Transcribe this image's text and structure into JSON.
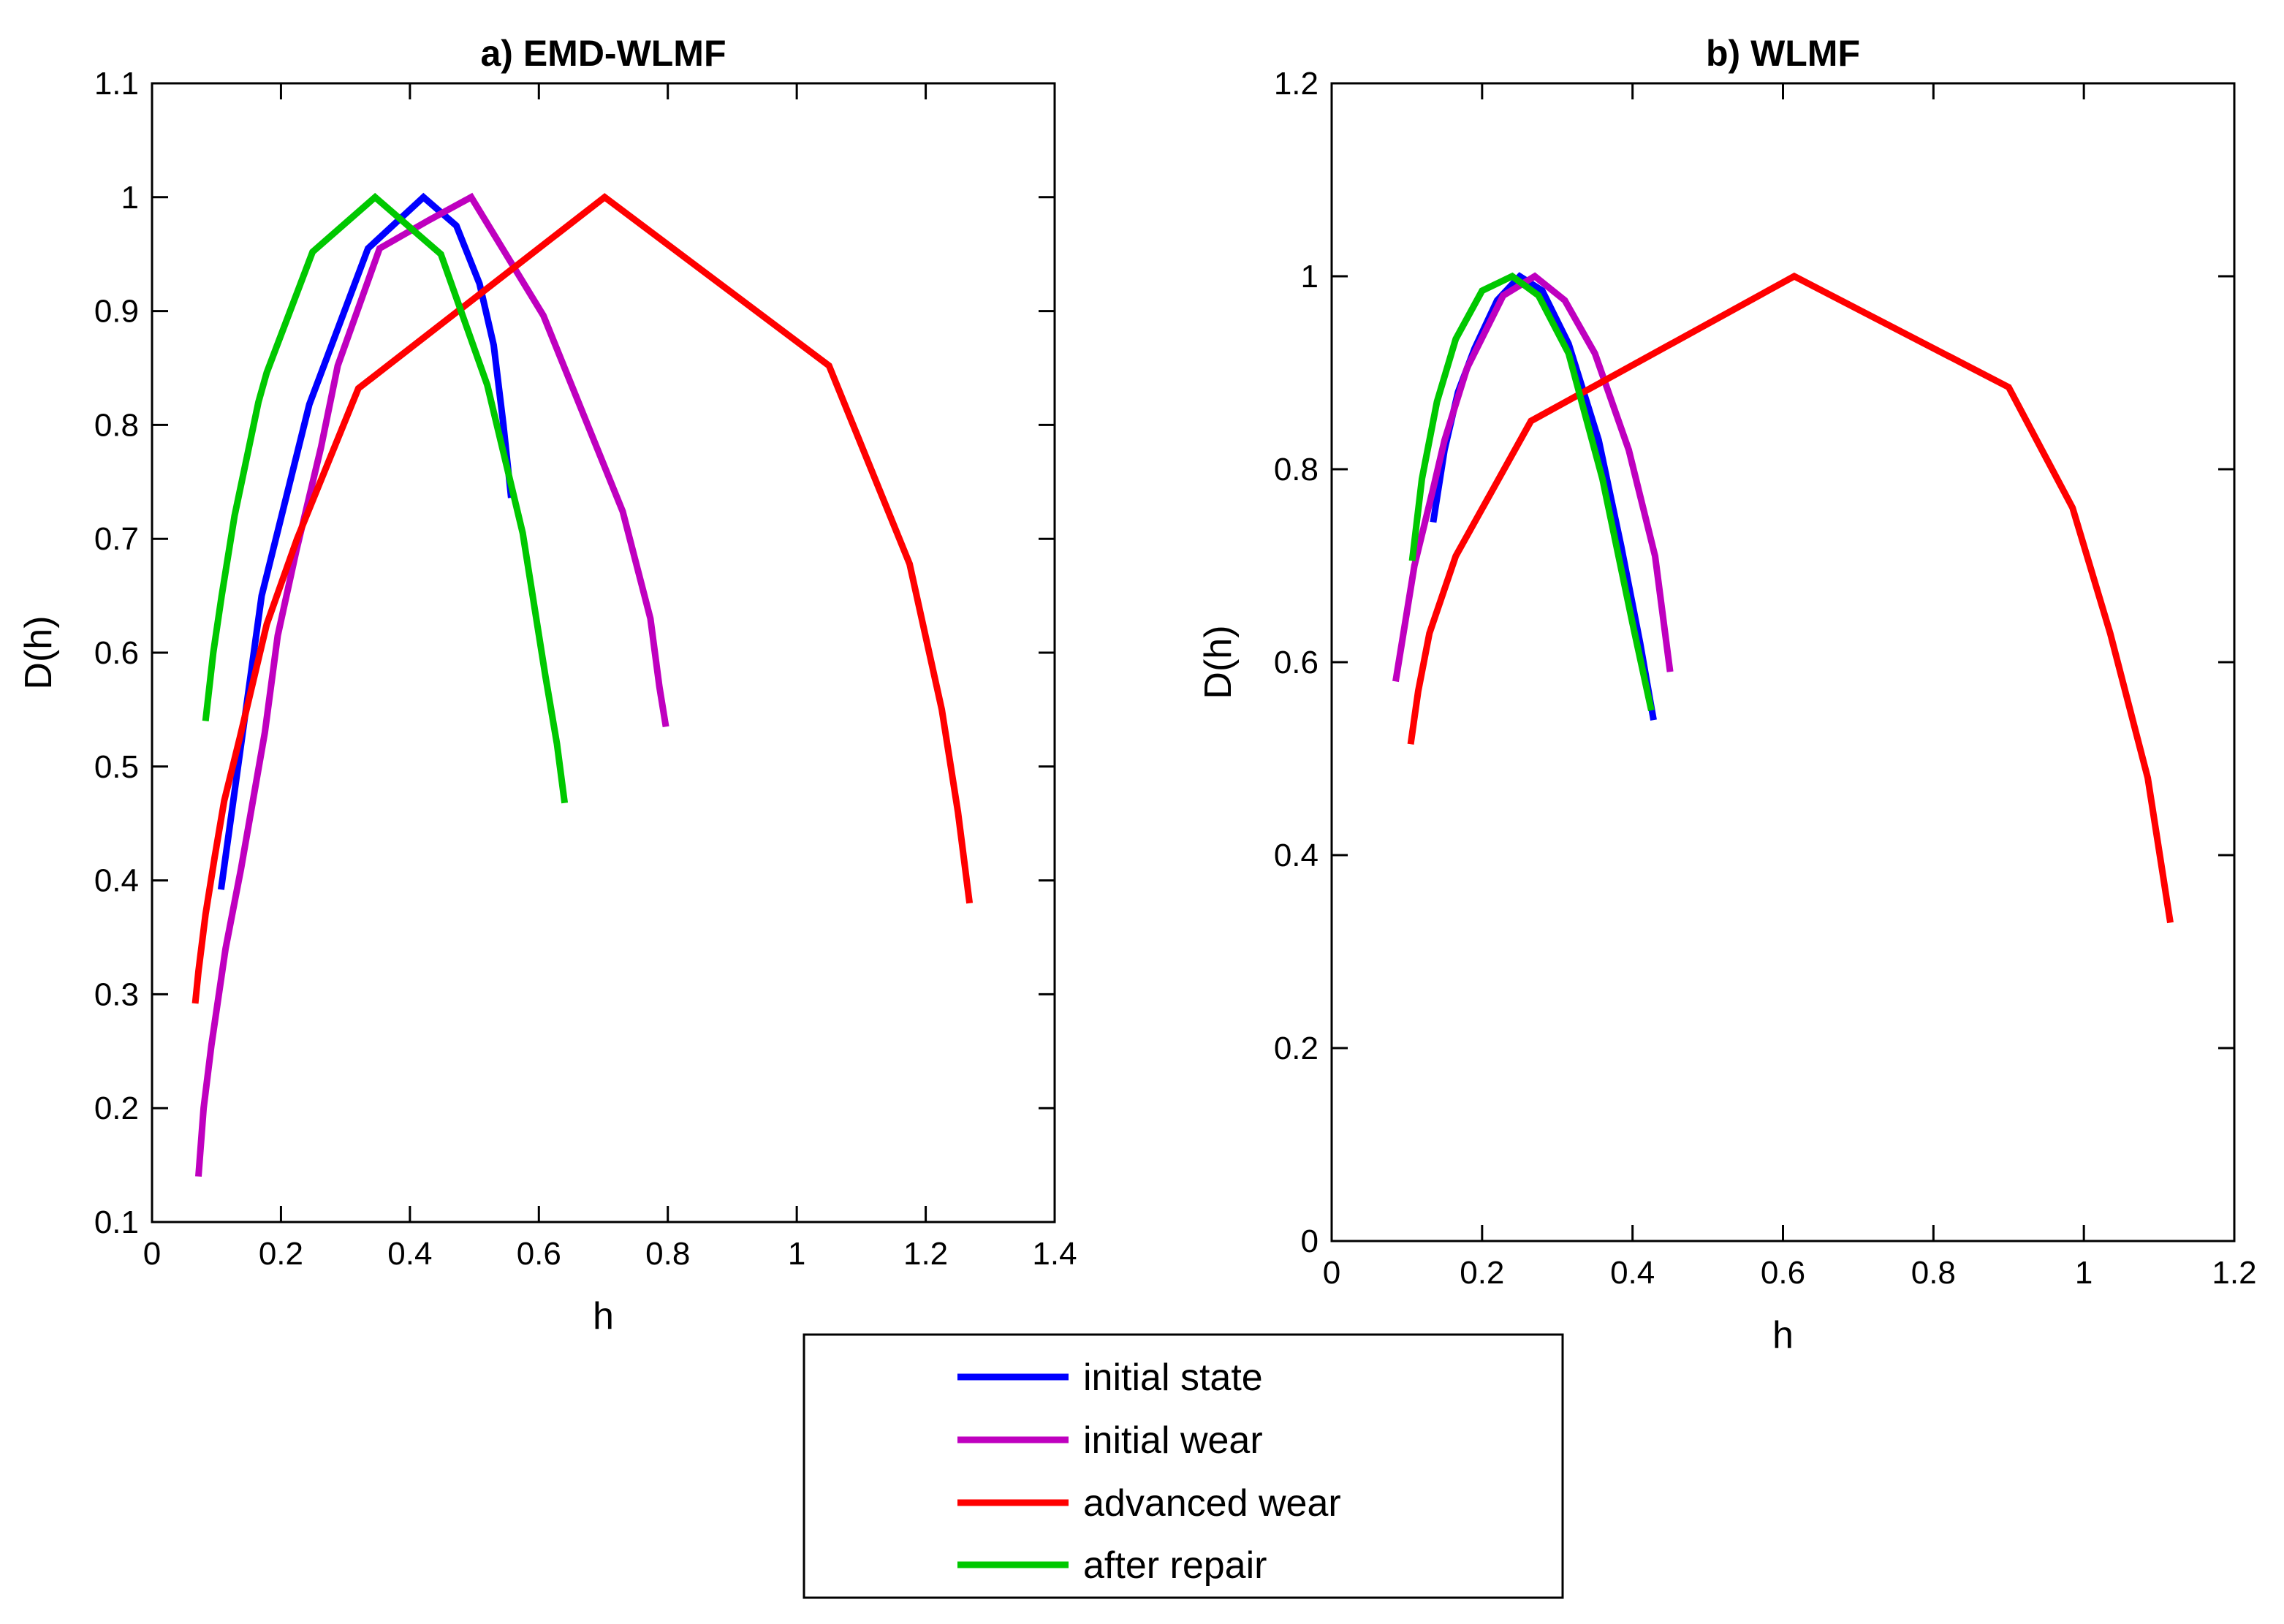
{
  "chart_data": [
    {
      "type": "line",
      "title": "a) EMD-WLMF",
      "xlabel": "h",
      "ylabel": "D(h)",
      "xlim": [
        0,
        1.4
      ],
      "ylim": [
        0.1,
        1.1
      ],
      "xticks": [
        0,
        0.2,
        0.4,
        0.6,
        0.8,
        1,
        1.2,
        1.4
      ],
      "xtick_labels": [
        "0",
        "0.2",
        "0.4",
        "0.6",
        "0.8",
        "1",
        "1.2",
        "1.4"
      ],
      "yticks": [
        0.1,
        0.2,
        0.3,
        0.4,
        0.5,
        0.6,
        0.7,
        0.8,
        0.9,
        1,
        1.1
      ],
      "ytick_labels": [
        "0.1",
        "0.2",
        "0.3",
        "0.4",
        "0.5",
        "0.6",
        "0.7",
        "0.8",
        "0.9",
        "1",
        "1.1"
      ],
      "grid": false,
      "series": [
        {
          "name": "initial state",
          "color": "#0000ff",
          "x": [
            0.107,
            0.17,
            0.244,
            0.335,
            0.421,
            0.472,
            0.508,
            0.53,
            0.545,
            0.557
          ],
          "y": [
            0.392,
            0.65,
            0.818,
            0.955,
            1.0,
            0.975,
            0.924,
            0.87,
            0.8,
            0.736
          ]
        },
        {
          "name": "initial wear",
          "color": "#bf00bf",
          "x": [
            0.072,
            0.08,
            0.092,
            0.114,
            0.138,
            0.175,
            0.195,
            0.224,
            0.262,
            0.288,
            0.353,
            0.43,
            0.495,
            0.607,
            0.73,
            0.773,
            0.787,
            0.797
          ],
          "y": [
            0.14,
            0.2,
            0.255,
            0.34,
            0.41,
            0.53,
            0.615,
            0.69,
            0.78,
            0.852,
            0.955,
            0.98,
            1.0,
            0.896,
            0.724,
            0.63,
            0.57,
            0.535
          ]
        },
        {
          "name": "advanced wear",
          "color": "#ff0000",
          "x": [
            0.067,
            0.072,
            0.083,
            0.097,
            0.112,
            0.136,
            0.178,
            0.225,
            0.32,
            0.702,
            1.05,
            1.175,
            1.225,
            1.25,
            1.268
          ],
          "y": [
            0.292,
            0.32,
            0.37,
            0.42,
            0.47,
            0.525,
            0.625,
            0.7,
            0.832,
            1.0,
            0.852,
            0.678,
            0.55,
            0.46,
            0.38
          ]
        },
        {
          "name": "after repair",
          "color": "#00c800",
          "x": [
            0.083,
            0.095,
            0.108,
            0.128,
            0.165,
            0.178,
            0.249,
            0.346,
            0.448,
            0.52,
            0.575,
            0.61,
            0.628,
            0.64
          ],
          "y": [
            0.54,
            0.6,
            0.65,
            0.72,
            0.82,
            0.846,
            0.952,
            1.0,
            0.95,
            0.835,
            0.705,
            0.58,
            0.52,
            0.468
          ]
        }
      ]
    },
    {
      "type": "line",
      "title": "b) WLMF",
      "xlabel": "h",
      "ylabel": "D(h)",
      "xlim": [
        0,
        1.2
      ],
      "ylim": [
        0,
        1.2
      ],
      "xticks": [
        0,
        0.2,
        0.4,
        0.6,
        0.8,
        1,
        1.2
      ],
      "xtick_labels": [
        "0",
        "0.2",
        "0.4",
        "0.6",
        "0.8",
        "1",
        "1.2"
      ],
      "yticks": [
        0,
        0.2,
        0.4,
        0.6,
        0.8,
        1,
        1.2
      ],
      "ytick_labels": [
        "0",
        "0.2",
        "0.4",
        "0.6",
        "0.8",
        "1",
        "1.2"
      ],
      "grid": false,
      "series": [
        {
          "name": "initial state",
          "color": "#0000ff",
          "x": [
            0.135,
            0.15,
            0.168,
            0.19,
            0.22,
            0.25,
            0.28,
            0.315,
            0.355,
            0.385,
            0.41,
            0.428
          ],
          "y": [
            0.745,
            0.82,
            0.88,
            0.925,
            0.975,
            1.0,
            0.985,
            0.93,
            0.83,
            0.72,
            0.62,
            0.54
          ]
        },
        {
          "name": "initial wear",
          "color": "#bf00bf",
          "x": [
            0.085,
            0.11,
            0.135,
            0.15,
            0.18,
            0.228,
            0.27,
            0.31,
            0.35,
            0.395,
            0.43,
            0.45
          ],
          "y": [
            0.58,
            0.7,
            0.78,
            0.83,
            0.905,
            0.98,
            1.0,
            0.975,
            0.92,
            0.82,
            0.71,
            0.59
          ]
        },
        {
          "name": "advanced wear",
          "color": "#ff0000",
          "x": [
            0.105,
            0.115,
            0.13,
            0.165,
            0.265,
            0.615,
            0.9,
            0.985,
            1.035,
            1.085,
            1.115
          ],
          "y": [
            0.515,
            0.57,
            0.63,
            0.71,
            0.85,
            1.0,
            0.885,
            0.76,
            0.63,
            0.48,
            0.33
          ]
        },
        {
          "name": "after repair",
          "color": "#00c800",
          "x": [
            0.107,
            0.12,
            0.14,
            0.165,
            0.2,
            0.24,
            0.275,
            0.315,
            0.36,
            0.4,
            0.425
          ],
          "y": [
            0.705,
            0.79,
            0.87,
            0.935,
            0.985,
            1.0,
            0.98,
            0.92,
            0.79,
            0.64,
            0.55
          ]
        }
      ]
    }
  ],
  "legend": {
    "placement": "bottom-center",
    "entries": [
      {
        "label": "initial state",
        "color": "#0000ff"
      },
      {
        "label": "initial wear",
        "color": "#bf00bf"
      },
      {
        "label": "advanced wear",
        "color": "#ff0000"
      },
      {
        "label": "after repair",
        "color": "#00c800"
      }
    ]
  }
}
